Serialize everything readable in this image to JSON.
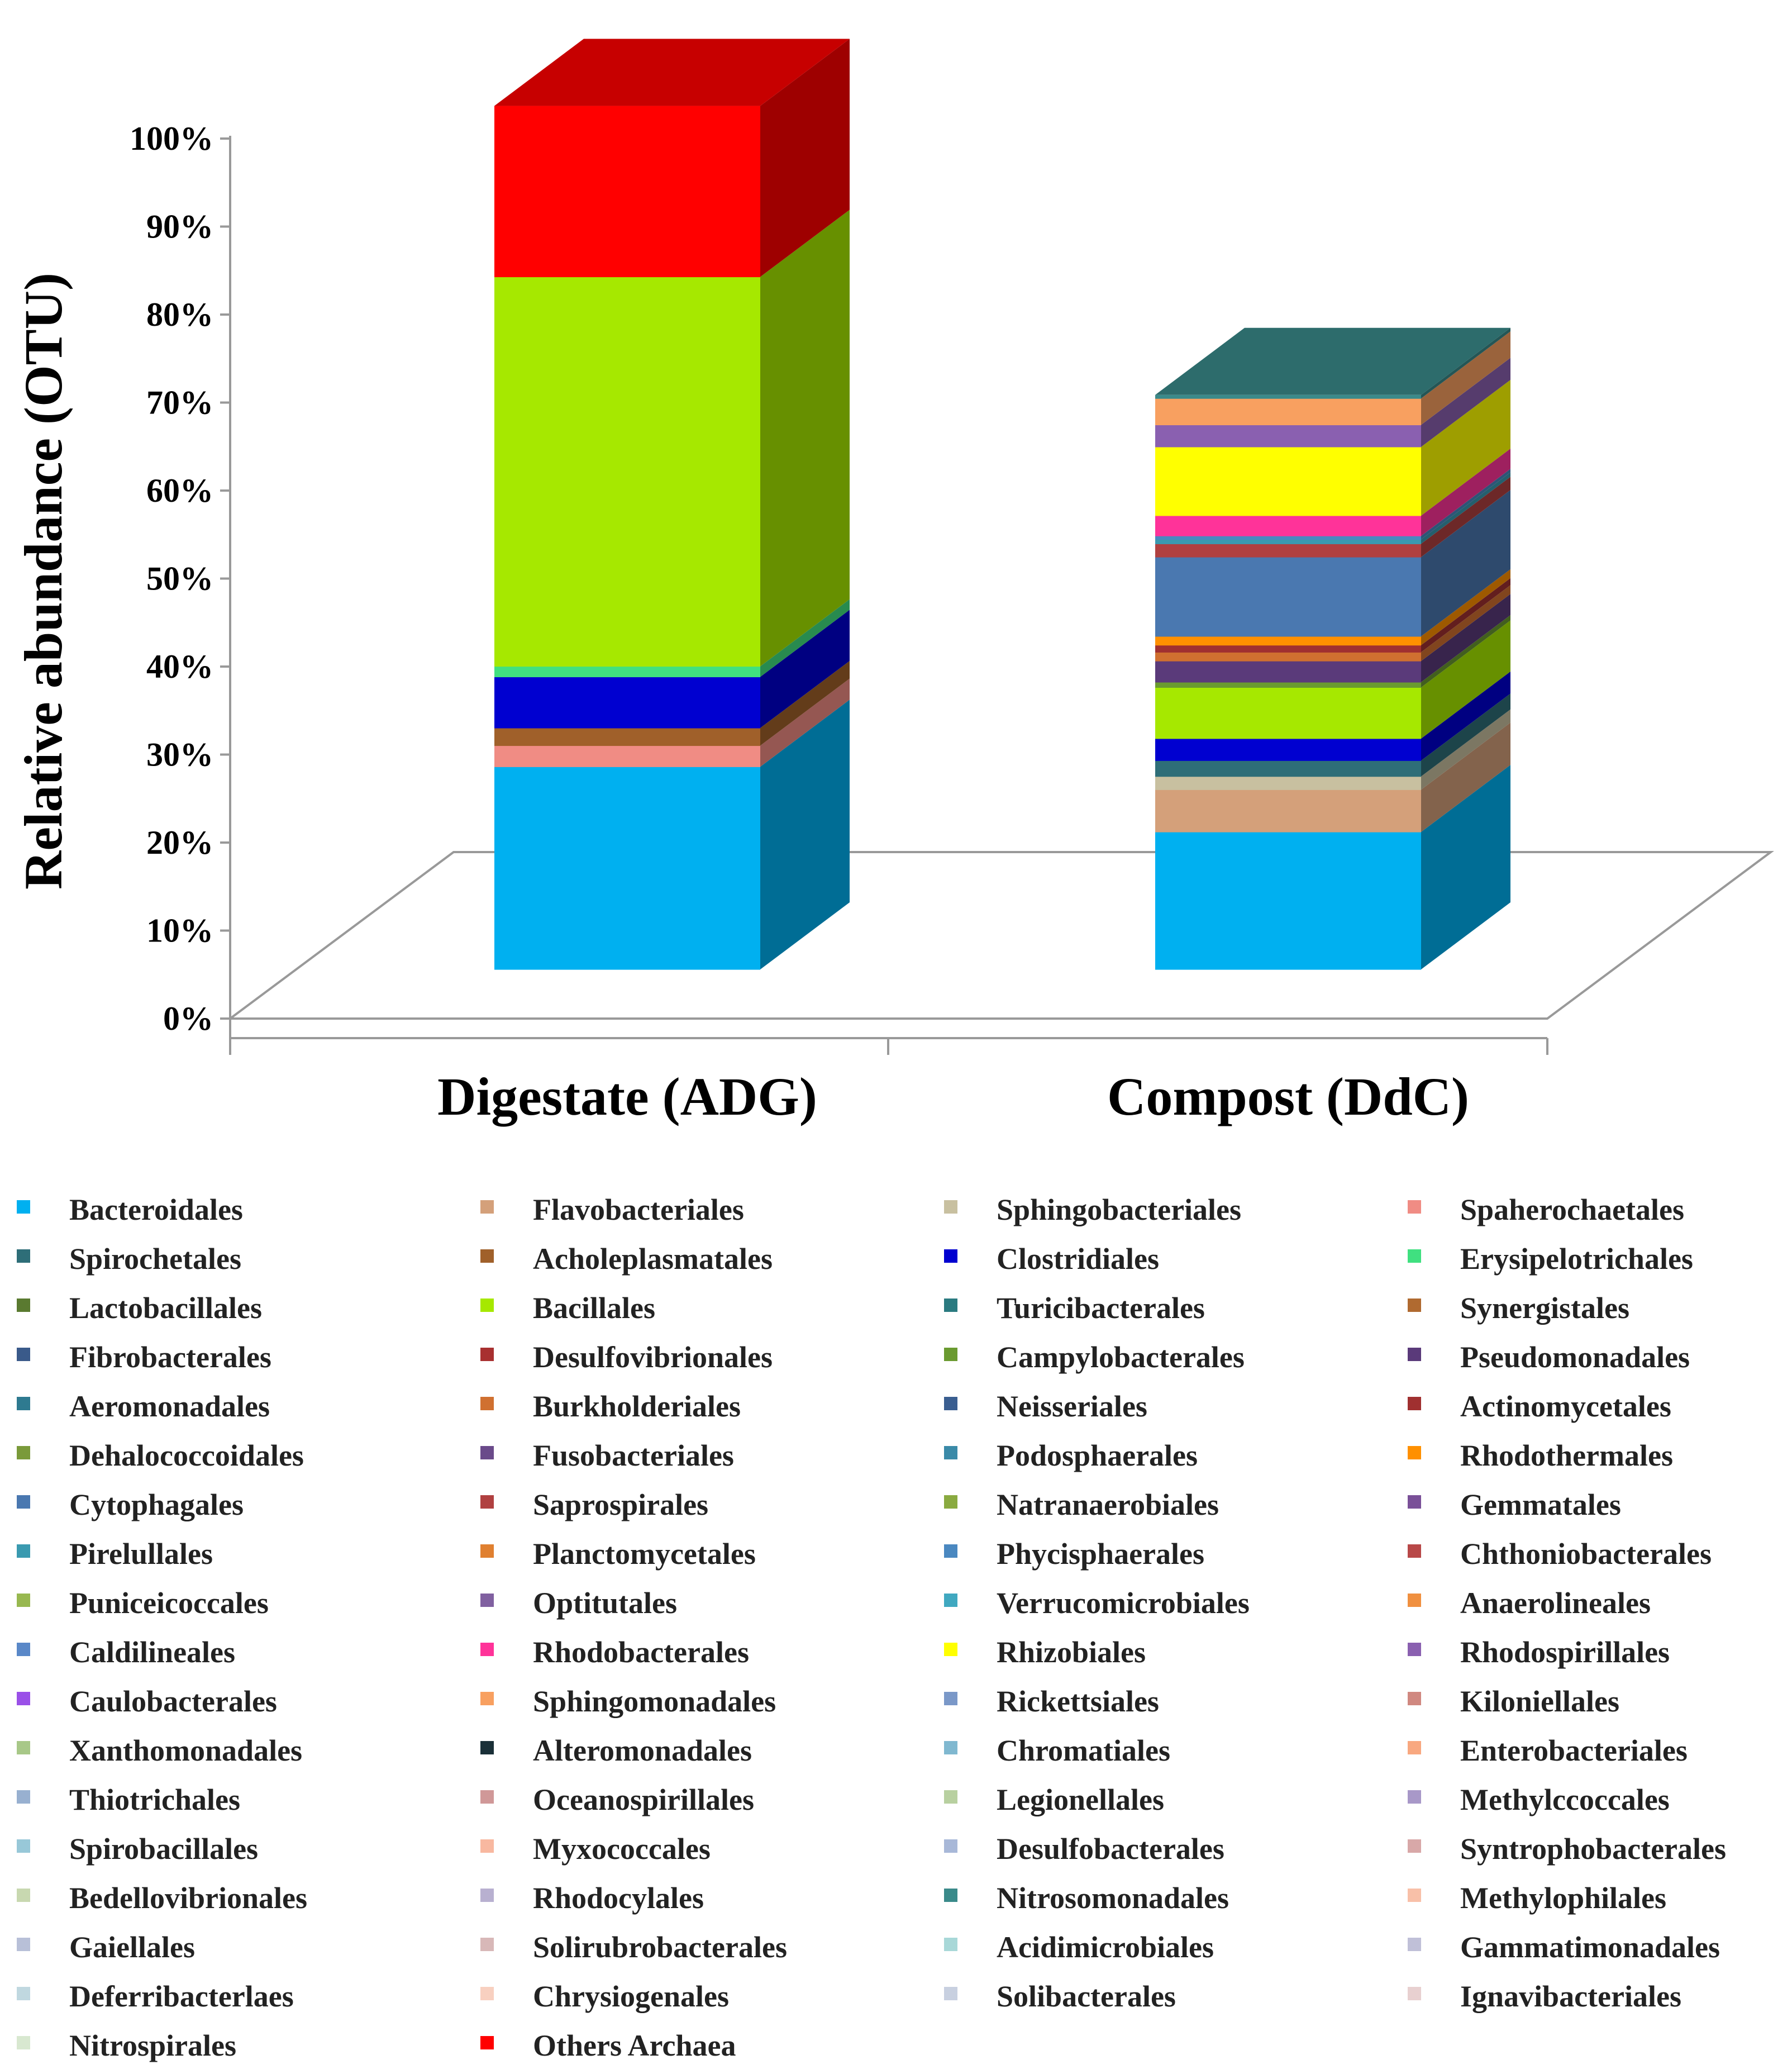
{
  "chart_data": {
    "type": "bar",
    "subtype": "stacked-100-3d",
    "title": "",
    "xlabel": "",
    "ylabel": "Relative abundance (OTU)",
    "ylim": [
      0,
      100
    ],
    "y_ticks": [
      "0%",
      "10%",
      "20%",
      "30%",
      "40%",
      "50%",
      "60%",
      "70%",
      "80%",
      "90%",
      "100%"
    ],
    "categories": [
      "Digestate (ADG)",
      "Compost (DdC)"
    ],
    "legend_position": "bottom",
    "series": [
      {
        "name": "Bacteroidales",
        "color": "#00B0F0",
        "values": [
          23.0,
          15.6
        ]
      },
      {
        "name": "Flavobacteriales",
        "color": "#D4A07A",
        "values": [
          0.0,
          4.8
        ]
      },
      {
        "name": "Sphingobacteriales",
        "color": "#C8C0A0",
        "values": [
          0.0,
          1.5
        ]
      },
      {
        "name": "Spaherochaetales",
        "color": "#F08C84",
        "values": [
          2.4,
          0.0
        ]
      },
      {
        "name": "Spirochetales",
        "color": "#2E6E78",
        "values": [
          0.0,
          1.8
        ]
      },
      {
        "name": "Acholeplasmatales",
        "color": "#A0602A",
        "values": [
          2.0,
          0.0
        ]
      },
      {
        "name": "Clostridiales",
        "color": "#0000D0",
        "values": [
          5.8,
          2.5
        ]
      },
      {
        "name": "Erysipelotrichales",
        "color": "#40E080",
        "values": [
          1.2,
          0.0
        ]
      },
      {
        "name": "Lactobacillales",
        "color": "#5A7A30",
        "values": [
          0.0,
          0.0
        ]
      },
      {
        "name": "Bacillales",
        "color": "#A6E800",
        "values": [
          44.2,
          5.8
        ]
      },
      {
        "name": "Turicibacterales",
        "color": "#2A7A80",
        "values": [
          0.0,
          0.0
        ]
      },
      {
        "name": "Synergistales",
        "color": "#B06A30",
        "values": [
          0.0,
          0.0
        ]
      },
      {
        "name": "Fibrobacterales",
        "color": "#3A5A8A",
        "values": [
          0.0,
          0.0
        ]
      },
      {
        "name": "Desulfovibrionales",
        "color": "#A83030",
        "values": [
          0.0,
          0.0
        ]
      },
      {
        "name": "Campylobacterales",
        "color": "#6A9A30",
        "values": [
          0.0,
          0.6
        ]
      },
      {
        "name": "Pseudomonadales",
        "color": "#5A3A7A",
        "values": [
          0.0,
          2.4
        ]
      },
      {
        "name": "Aeromonadales",
        "color": "#2E7A90",
        "values": [
          0.0,
          0.0
        ]
      },
      {
        "name": "Burkholderiales",
        "color": "#D07030",
        "values": [
          0.0,
          1.0
        ]
      },
      {
        "name": "Neisseriales",
        "color": "#3A5E90",
        "values": [
          0.0,
          0.0
        ]
      },
      {
        "name": "Actinomycetales",
        "color": "#A03030",
        "values": [
          0.0,
          0.8
        ]
      },
      {
        "name": "Dehalococcoidales",
        "color": "#7A9A3A",
        "values": [
          0.0,
          0.0
        ]
      },
      {
        "name": "Fusobacteriales",
        "color": "#6A4A8A",
        "values": [
          0.0,
          0.0
        ]
      },
      {
        "name": "Podosphaerales",
        "color": "#3A8AA8",
        "values": [
          0.0,
          0.0
        ]
      },
      {
        "name": "Rhodothermales",
        "color": "#FF9000",
        "values": [
          0.0,
          1.0
        ]
      },
      {
        "name": "Cytophagales",
        "color": "#4A78B0",
        "values": [
          0.0,
          9.0
        ]
      },
      {
        "name": "Saprospirales",
        "color": "#B04040",
        "values": [
          0.0,
          1.5
        ]
      },
      {
        "name": "Natranaerobiales",
        "color": "#8AAA40",
        "values": [
          0.0,
          0.0
        ]
      },
      {
        "name": "Gemmatales",
        "color": "#7A5098",
        "values": [
          0.0,
          0.0
        ]
      },
      {
        "name": "Pirelullales",
        "color": "#3A9AB0",
        "values": [
          0.0,
          0.5
        ]
      },
      {
        "name": "Planctomycetales",
        "color": "#E08030",
        "values": [
          0.0,
          0.0
        ]
      },
      {
        "name": "Phycisphaerales",
        "color": "#4A88C0",
        "values": [
          0.0,
          0.4
        ]
      },
      {
        "name": "Chthoniobacterales",
        "color": "#B84848",
        "values": [
          0.0,
          0.0
        ]
      },
      {
        "name": "Puniceicoccales",
        "color": "#98B850",
        "values": [
          0.0,
          0.0
        ]
      },
      {
        "name": "Optitutales",
        "color": "#8060A0",
        "values": [
          0.0,
          0.0
        ]
      },
      {
        "name": "Verrucomicrobiales",
        "color": "#40A8C0",
        "values": [
          0.0,
          0.0
        ]
      },
      {
        "name": "Anaerolineales",
        "color": "#F09040",
        "values": [
          0.0,
          0.0
        ]
      },
      {
        "name": "Caldilineales",
        "color": "#5A88C8",
        "values": [
          0.0,
          0.0
        ]
      },
      {
        "name": "Rhodobacterales",
        "color": "#FF3399",
        "values": [
          0.0,
          2.3
        ]
      },
      {
        "name": "Rhizobiales",
        "color": "#FFFF00",
        "values": [
          0.0,
          7.8
        ]
      },
      {
        "name": "Rhodospirillales",
        "color": "#8A60B0",
        "values": [
          0.0,
          2.5
        ]
      },
      {
        "name": "Caulobacterales",
        "color": "#9A50E8",
        "values": [
          0.0,
          0.0
        ]
      },
      {
        "name": "Sphingomonadales",
        "color": "#F8A060",
        "values": [
          0.0,
          3.0
        ]
      },
      {
        "name": "Rickettsiales",
        "color": "#7A98C8",
        "values": [
          0.0,
          0.0
        ]
      },
      {
        "name": "Kiloniellales",
        "color": "#D08880",
        "values": [
          0.0,
          0.0
        ]
      },
      {
        "name": "Xanthomonadales",
        "color": "#A8C888",
        "values": [
          0.0,
          0.0
        ]
      },
      {
        "name": "Alteromonadales",
        "color": "#1A3038",
        "values": [
          0.0,
          0.0
        ]
      },
      {
        "name": "Chromatiales",
        "color": "#80B8D0",
        "values": [
          0.0,
          0.0
        ]
      },
      {
        "name": "Enterobacteriales",
        "color": "#F8A880",
        "values": [
          0.0,
          0.0
        ]
      },
      {
        "name": "Thiotrichales",
        "color": "#98B0D0",
        "values": [
          0.0,
          0.0
        ]
      },
      {
        "name": "Oceanospirillales",
        "color": "#D09898",
        "values": [
          0.0,
          0.0
        ]
      },
      {
        "name": "Legionellales",
        "color": "#B8D0A0",
        "values": [
          0.0,
          0.0
        ]
      },
      {
        "name": "Methylccoccales",
        "color": "#A898C8",
        "values": [
          0.0,
          0.0
        ]
      },
      {
        "name": "Spirobacillales",
        "color": "#98C8D8",
        "values": [
          0.0,
          0.0
        ]
      },
      {
        "name": "Myxococcales",
        "color": "#F8B8A0",
        "values": [
          0.0,
          0.0
        ]
      },
      {
        "name": "Desulfobacterales",
        "color": "#A8B8D8",
        "values": [
          0.0,
          0.0
        ]
      },
      {
        "name": "Syntrophobacterales",
        "color": "#D8A8A8",
        "values": [
          0.0,
          0.0
        ]
      },
      {
        "name": "Bedellovibrionales",
        "color": "#C8D8B0",
        "values": [
          0.0,
          0.0
        ]
      },
      {
        "name": "Rhodocylales",
        "color": "#B8B0D0",
        "values": [
          0.0,
          0.0
        ]
      },
      {
        "name": "Nitrosomonadales",
        "color": "#3A8A8A",
        "values": [
          0.0,
          0.4
        ]
      },
      {
        "name": "Methylophilales",
        "color": "#F8C0A8",
        "values": [
          0.0,
          0.0
        ]
      },
      {
        "name": "Gaiellales",
        "color": "#B8C0D8",
        "values": [
          0.0,
          0.0
        ]
      },
      {
        "name": "Solirubrobacterales",
        "color": "#D8B8B8",
        "values": [
          0.0,
          0.0
        ]
      },
      {
        "name": "Acidimicrobiales",
        "color": "#A8D8D8",
        "values": [
          0.0,
          0.0
        ]
      },
      {
        "name": "Gammatimonadales",
        "color": "#C0C0D8",
        "values": [
          0.0,
          0.0
        ]
      },
      {
        "name": "Deferribacterlaes",
        "color": "#C0D8E0",
        "values": [
          0.0,
          0.0
        ]
      },
      {
        "name": "Chrysiogenales",
        "color": "#F8D0C0",
        "values": [
          0.0,
          0.0
        ]
      },
      {
        "name": "Solibacterales",
        "color": "#C8D0E0",
        "values": [
          0.0,
          0.0
        ]
      },
      {
        "name": "Ignavibacteriales",
        "color": "#E8D0D0",
        "values": [
          0.0,
          0.0
        ]
      },
      {
        "name": "Nitrospirales",
        "color": "#D8E8D0",
        "values": [
          0.0,
          0.0
        ]
      },
      {
        "name": "Others Archaea",
        "color": "#FF0000",
        "values": [
          19.4,
          0.0
        ]
      }
    ]
  }
}
